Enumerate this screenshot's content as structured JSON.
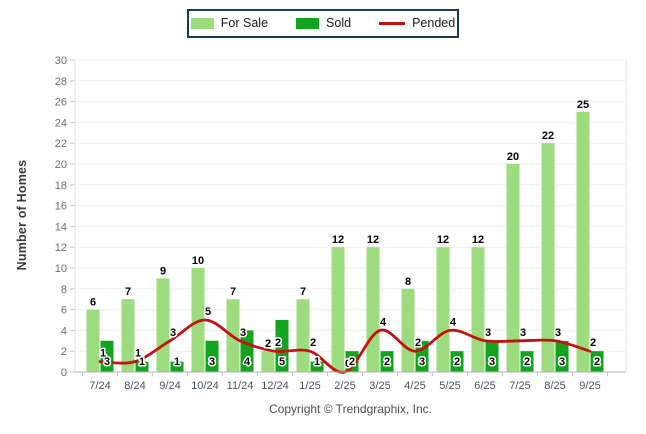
{
  "chart_data": {
    "type": "bar",
    "title": "",
    "xlabel": "",
    "ylabel": "Number of Homes",
    "categories": [
      "7/24",
      "8/24",
      "9/24",
      "10/24",
      "11/24",
      "12/24",
      "1/25",
      "2/25",
      "3/25",
      "4/25",
      "5/25",
      "6/25",
      "7/25",
      "8/25",
      "9/25"
    ],
    "series": [
      {
        "name": "For Sale",
        "render": "bar",
        "color": "#9CDB7E",
        "values": [
          6,
          7,
          9,
          10,
          7,
          2,
          7,
          12,
          12,
          8,
          12,
          12,
          20,
          22,
          25
        ]
      },
      {
        "name": "Sold",
        "render": "bar",
        "color": "#12A31F",
        "values": [
          3,
          1,
          1,
          3,
          4,
          5,
          1,
          2,
          2,
          3,
          2,
          3,
          2,
          3,
          2
        ]
      },
      {
        "name": "Pended",
        "render": "line",
        "color": "#C41212",
        "values": [
          1,
          1,
          3,
          5,
          3,
          2,
          2,
          0,
          4,
          2,
          4,
          3,
          3,
          3,
          2
        ]
      }
    ],
    "ylim": [
      0,
      30
    ],
    "ytick_step": 2,
    "grid": true,
    "legend_position": "top-center",
    "colors": {
      "legend_border": "#17375D",
      "grid_line": "#EDEDED",
      "plot_frame": "#E0E0E0",
      "baseline": "#B3B3B3",
      "tick": "#C9C9C9",
      "ytick_text": "#6E6E6E",
      "xtick_text": "#49525C",
      "data_label": "#000000"
    }
  },
  "footer": {
    "copyright": "Copyright © Trendgraphix, Inc."
  }
}
